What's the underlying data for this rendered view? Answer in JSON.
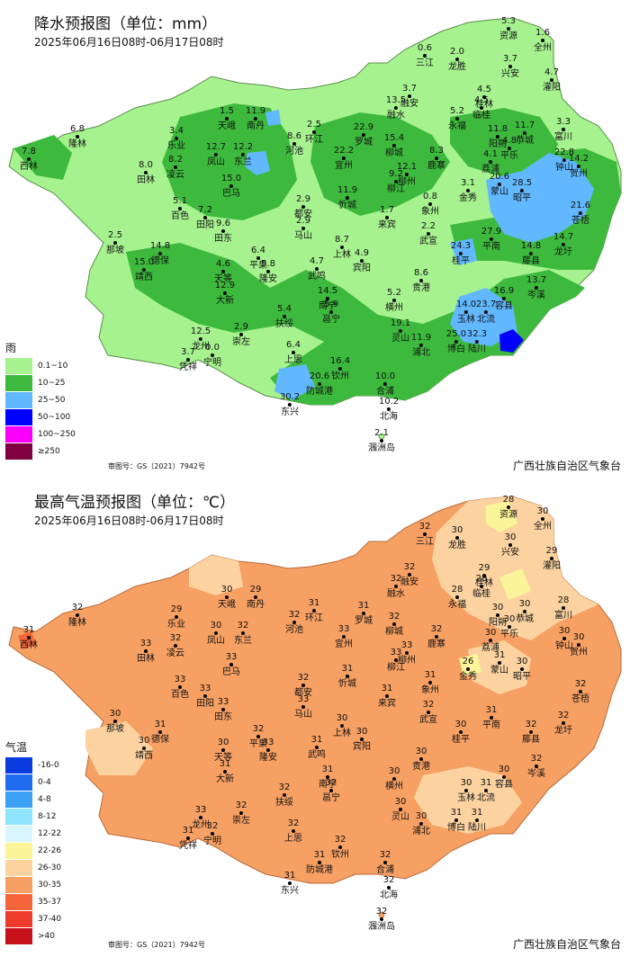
{
  "rain_panel": {
    "title": "降水预报图（单位：mm）",
    "date": "2025年06月16日08时-06月17日08时",
    "legend_title": "雨",
    "legend": [
      {
        "label": "0.1~10",
        "color": "#a6f28f"
      },
      {
        "label": "10~25",
        "color": "#3dba3d"
      },
      {
        "label": "25~50",
        "color": "#61b8ff"
      },
      {
        "label": "50~100",
        "color": "#0000ff"
      },
      {
        "label": "100~250",
        "color": "#fa00fa"
      },
      {
        "label": "≥250",
        "color": "#800040"
      }
    ],
    "map_no": "审图号：GS（2021）7942号",
    "org": "广西壮族自治区气象台",
    "stations": [
      {
        "name": "资源",
        "value": "5.3"
      },
      {
        "name": "全州",
        "value": "1.6"
      },
      {
        "name": "三江",
        "value": "0.6"
      },
      {
        "name": "龙胜",
        "value": "2.0"
      },
      {
        "name": "兴安",
        "value": "3.7"
      },
      {
        "name": "灌阳",
        "value": "4.7"
      },
      {
        "name": "融安",
        "value": "3.7"
      },
      {
        "name": "融水",
        "value": "13.5"
      },
      {
        "name": "临桂",
        "value": "4.5"
      },
      {
        "name": "桂林",
        "value": "4.5"
      },
      {
        "name": "永福",
        "value": "5.2"
      },
      {
        "name": "阳朔",
        "value": "11.8"
      },
      {
        "name": "恭城",
        "value": "11.7"
      },
      {
        "name": "富川",
        "value": "3.3"
      },
      {
        "name": "天峨",
        "value": "1.5"
      },
      {
        "name": "南丹",
        "value": "11.9"
      },
      {
        "name": "隆林",
        "value": "6.8"
      },
      {
        "name": "西林",
        "value": "7.8"
      },
      {
        "name": "乐业",
        "value": "3.4"
      },
      {
        "name": "凤山",
        "value": "12.7"
      },
      {
        "name": "东兰",
        "value": "12.2"
      },
      {
        "name": "环江",
        "value": "2.5"
      },
      {
        "name": "河池",
        "value": "8.6"
      },
      {
        "name": "罗城",
        "value": "22.9"
      },
      {
        "name": "宜州",
        "value": "22.2"
      },
      {
        "name": "柳城",
        "value": "15.4"
      },
      {
        "name": "鹿寨",
        "value": "8.3"
      },
      {
        "name": "平乐",
        "value": "4.8"
      },
      {
        "name": "荔浦",
        "value": "4.1"
      },
      {
        "name": "钟山",
        "value": "22.8"
      },
      {
        "name": "贺州",
        "value": "14.2"
      },
      {
        "name": "田林",
        "value": "8.0"
      },
      {
        "name": "凌云",
        "value": "8.2"
      },
      {
        "name": "巴马",
        "value": "15.0"
      },
      {
        "name": "柳州",
        "value": "12.1"
      },
      {
        "name": "柳江",
        "value": "9.2"
      },
      {
        "name": "金秀",
        "value": "3.1"
      },
      {
        "name": "蒙山",
        "value": "20.6"
      },
      {
        "name": "昭平",
        "value": "28.5"
      },
      {
        "name": "百色",
        "value": "5.1"
      },
      {
        "name": "田阳",
        "value": "7.2"
      },
      {
        "name": "田东",
        "value": "9.6"
      },
      {
        "name": "都安",
        "value": "2.9"
      },
      {
        "name": "马山",
        "value": "2.9"
      },
      {
        "name": "忻城",
        "value": "11.9"
      },
      {
        "name": "象州",
        "value": "0.8"
      },
      {
        "name": "来宾",
        "value": "1.7"
      },
      {
        "name": "苍梧",
        "value": "21.6"
      },
      {
        "name": "那坡",
        "value": "2.5"
      },
      {
        "name": "德保",
        "value": "14.8"
      },
      {
        "name": "靖西",
        "value": "15.0"
      },
      {
        "name": "平果",
        "value": "6.4"
      },
      {
        "name": "隆安",
        "value": "5.8"
      },
      {
        "name": "天等",
        "value": "4.6"
      },
      {
        "name": "大新",
        "value": "12.9"
      },
      {
        "name": "上林",
        "value": "8.7"
      },
      {
        "name": "宾阳",
        "value": "4.9"
      },
      {
        "name": "武鸣",
        "value": "4.7"
      },
      {
        "name": "武宣",
        "value": "2.2"
      },
      {
        "name": "桂平",
        "value": "24.3"
      },
      {
        "name": "平南",
        "value": "27.9"
      },
      {
        "name": "藤县",
        "value": "14.8"
      },
      {
        "name": "龙圩",
        "value": "14.7"
      },
      {
        "name": "贵港",
        "value": "8.6"
      },
      {
        "name": "岑溪",
        "value": "13.7"
      },
      {
        "name": "南宁",
        "value": "14.5"
      },
      {
        "name": "邕宁",
        "value": "5.9"
      },
      {
        "name": "横州",
        "value": "5.2"
      },
      {
        "name": "扶绥",
        "value": "5.4"
      },
      {
        "name": "崇左",
        "value": "2.9"
      },
      {
        "name": "龙州",
        "value": "12.5"
      },
      {
        "name": "宁明",
        "value": "0.0"
      },
      {
        "name": "凭祥",
        "value": "3.7"
      },
      {
        "name": "上思",
        "value": "6.4"
      },
      {
        "name": "玉林",
        "value": "14.0"
      },
      {
        "name": "容县",
        "value": "16.9"
      },
      {
        "name": "北流",
        "value": "23.7"
      },
      {
        "name": "灵山",
        "value": "19.1"
      },
      {
        "name": "浦北",
        "value": "11.9"
      },
      {
        "name": "博白",
        "value": "25.0"
      },
      {
        "name": "陆川",
        "value": "32.3"
      },
      {
        "name": "钦州",
        "value": "16.4"
      },
      {
        "name": "防城港",
        "value": "20.6"
      },
      {
        "name": "东兴",
        "value": "30.2"
      },
      {
        "name": "合浦",
        "value": "10.0"
      },
      {
        "name": "北海",
        "value": "10.2"
      },
      {
        "name": "涠洲岛",
        "value": "2.1"
      }
    ]
  },
  "temp_panel": {
    "title": "最高气温预报图（单位：℃）",
    "date": "2025年06月16日08时-06月17日08时",
    "legend_title": "气温",
    "legend": [
      {
        "label": "-16-0",
        "color": "#0a3be0"
      },
      {
        "label": "0-4",
        "color": "#1f6cf0"
      },
      {
        "label": "4-8",
        "color": "#3ca0f5"
      },
      {
        "label": "8-12",
        "color": "#8ce4ff"
      },
      {
        "label": "12-22",
        "color": "#d9f6ff"
      },
      {
        "label": "22-26",
        "color": "#fbf59a"
      },
      {
        "label": "26-30",
        "color": "#fcd3a0"
      },
      {
        "label": "30-35",
        "color": "#f7a063"
      },
      {
        "label": "35-37",
        "color": "#f4663a"
      },
      {
        "label": "37-40",
        "color": "#ef3b2c"
      },
      {
        "label": ">40",
        "color": "#c8101a"
      }
    ],
    "map_no": "审图号：GS（2021）7942号",
    "org": "广西壮族自治区气象台",
    "stations": [
      {
        "name": "资源",
        "value": "28"
      },
      {
        "name": "全州",
        "value": "30"
      },
      {
        "name": "三江",
        "value": "32"
      },
      {
        "name": "龙胜",
        "value": "30"
      },
      {
        "name": "兴安",
        "value": "30"
      },
      {
        "name": "灌阳",
        "value": "29"
      },
      {
        "name": "融安",
        "value": "32"
      },
      {
        "name": "融水",
        "value": "32"
      },
      {
        "name": "临桂",
        "value": "28"
      },
      {
        "name": "桂林",
        "value": "29"
      },
      {
        "name": "永福",
        "value": "28"
      },
      {
        "name": "阳朔",
        "value": "30"
      },
      {
        "name": "恭城",
        "value": "30"
      },
      {
        "name": "富川",
        "value": "28"
      },
      {
        "name": "天峨",
        "value": "30"
      },
      {
        "name": "南丹",
        "value": "29"
      },
      {
        "name": "隆林",
        "value": "32"
      },
      {
        "name": "西林",
        "value": "31"
      },
      {
        "name": "乐业",
        "value": "29"
      },
      {
        "name": "凤山",
        "value": "30"
      },
      {
        "name": "东兰",
        "value": "32"
      },
      {
        "name": "环江",
        "value": "31"
      },
      {
        "name": "河池",
        "value": "32"
      },
      {
        "name": "罗城",
        "value": "31"
      },
      {
        "name": "宜州",
        "value": "33"
      },
      {
        "name": "柳城",
        "value": "32"
      },
      {
        "name": "鹿寨",
        "value": "32"
      },
      {
        "name": "平乐",
        "value": "30"
      },
      {
        "name": "荔浦",
        "value": "30"
      },
      {
        "name": "钟山",
        "value": "30"
      },
      {
        "name": "贺州",
        "value": "30"
      },
      {
        "name": "田林",
        "value": "33"
      },
      {
        "name": "凌云",
        "value": "32"
      },
      {
        "name": "巴马",
        "value": "33"
      },
      {
        "name": "柳州",
        "value": "33"
      },
      {
        "name": "柳江",
        "value": "33"
      },
      {
        "name": "金秀",
        "value": "26"
      },
      {
        "name": "蒙山",
        "value": "31"
      },
      {
        "name": "昭平",
        "value": "30"
      },
      {
        "name": "百色",
        "value": "33"
      },
      {
        "name": "田阳",
        "value": "33"
      },
      {
        "name": "田东",
        "value": "33"
      },
      {
        "name": "都安",
        "value": "32"
      },
      {
        "name": "马山",
        "value": "33"
      },
      {
        "name": "忻城",
        "value": "31"
      },
      {
        "name": "象州",
        "value": "31"
      },
      {
        "name": "来宾",
        "value": "31"
      },
      {
        "name": "苍梧",
        "value": "32"
      },
      {
        "name": "那坡",
        "value": "30"
      },
      {
        "name": "德保",
        "value": "31"
      },
      {
        "name": "靖西",
        "value": "30"
      },
      {
        "name": "平果",
        "value": "32"
      },
      {
        "name": "隆安",
        "value": "33"
      },
      {
        "name": "天等",
        "value": "30"
      },
      {
        "name": "大新",
        "value": "31"
      },
      {
        "name": "上林",
        "value": "30"
      },
      {
        "name": "宾阳",
        "value": "30"
      },
      {
        "name": "武鸣",
        "value": "31"
      },
      {
        "name": "武宣",
        "value": "32"
      },
      {
        "name": "桂平",
        "value": "30"
      },
      {
        "name": "平南",
        "value": "31"
      },
      {
        "name": "藤县",
        "value": "32"
      },
      {
        "name": "龙圩",
        "value": "32"
      },
      {
        "name": "贵港",
        "value": "30"
      },
      {
        "name": "岑溪",
        "value": "32"
      },
      {
        "name": "南宁",
        "value": "31"
      },
      {
        "name": "邕宁",
        "value": "32"
      },
      {
        "name": "横州",
        "value": "30"
      },
      {
        "name": "扶绥",
        "value": "32"
      },
      {
        "name": "崇左",
        "value": "32"
      },
      {
        "name": "龙州",
        "value": "33"
      },
      {
        "name": "宁明",
        "value": "32"
      },
      {
        "name": "凭祥",
        "value": "31"
      },
      {
        "name": "上思",
        "value": "32"
      },
      {
        "name": "玉林",
        "value": "30"
      },
      {
        "name": "容县",
        "value": "30"
      },
      {
        "name": "北流",
        "value": "31"
      },
      {
        "name": "灵山",
        "value": "30"
      },
      {
        "name": "浦北",
        "value": "30"
      },
      {
        "name": "博白",
        "value": "31"
      },
      {
        "name": "陆川",
        "value": "31"
      },
      {
        "name": "钦州",
        "value": "32"
      },
      {
        "name": "防城港",
        "value": "31"
      },
      {
        "name": "东兴",
        "value": "31"
      },
      {
        "name": "合浦",
        "value": "32"
      },
      {
        "name": "北海",
        "value": "32"
      },
      {
        "name": "涠洲岛",
        "value": "32"
      }
    ]
  }
}
